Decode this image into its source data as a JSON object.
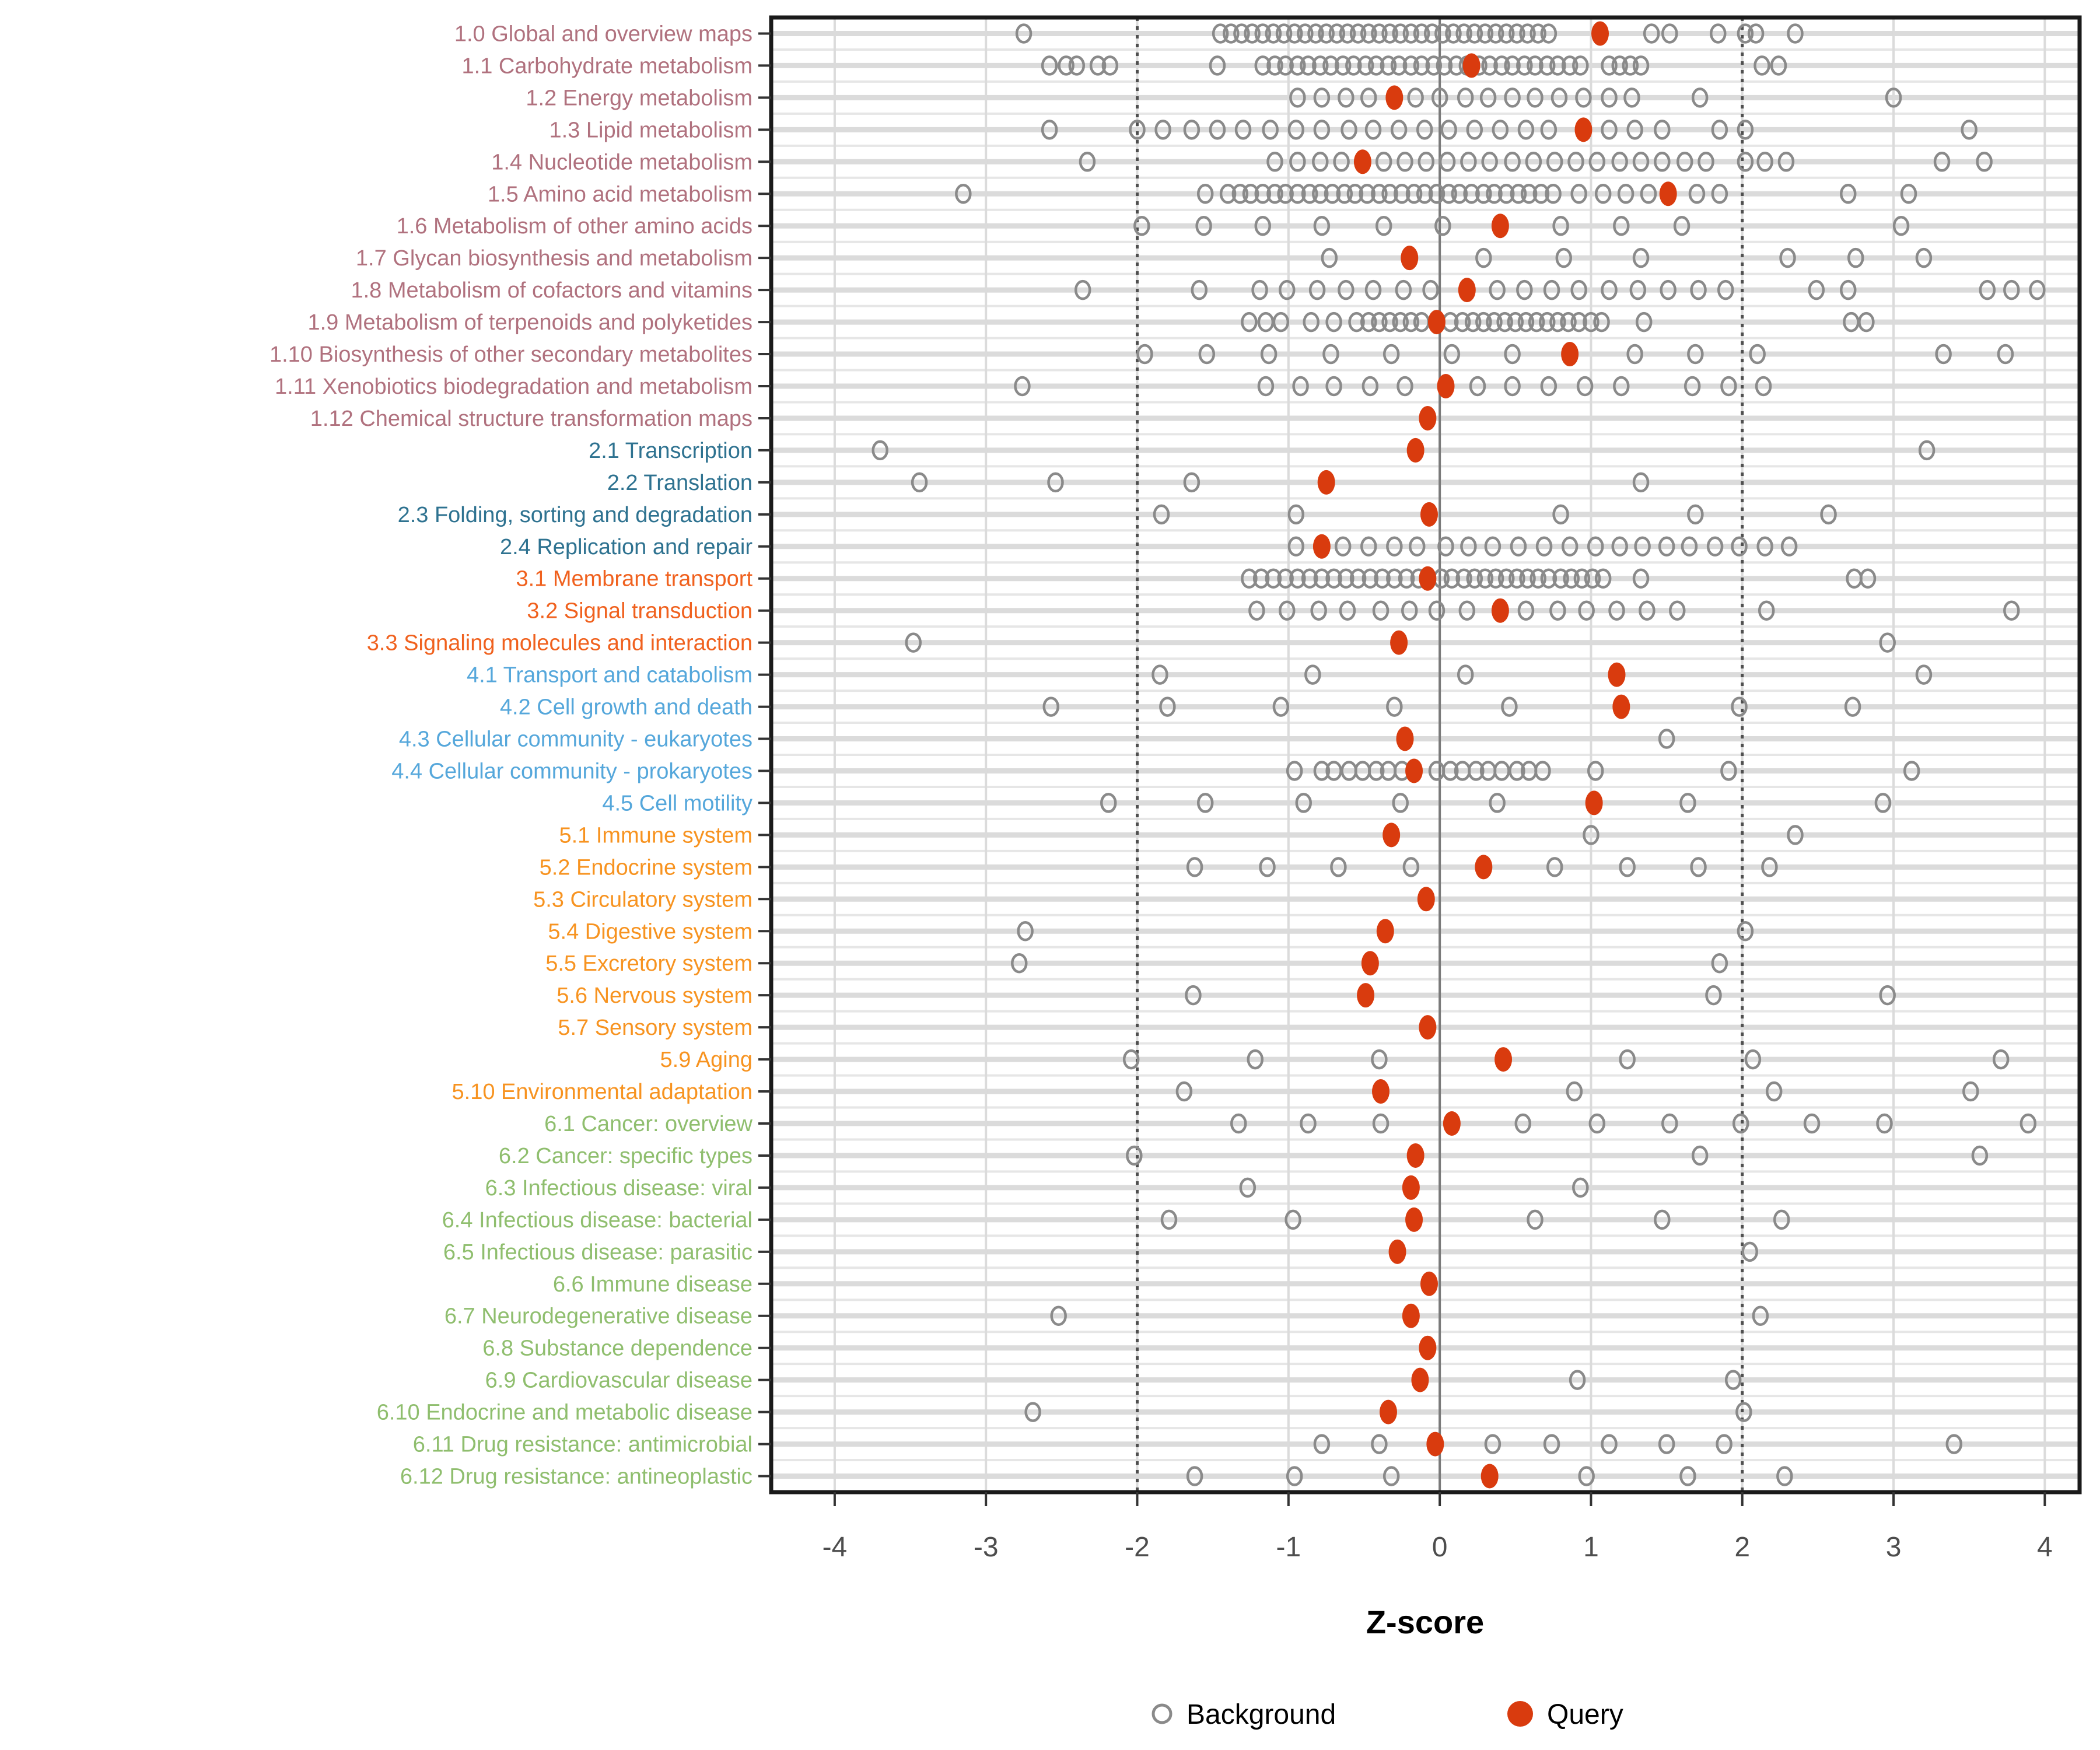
{
  "figure": {
    "kind": "horizontal strip plot of KEGG pathway category Z-scores",
    "background_color": "#ffffff"
  },
  "chart_data": {
    "type": "scatter",
    "title": "",
    "xlabel": "Z-score",
    "ylabel": "",
    "xlim": [
      -4.42,
      4.23
    ],
    "x_ticks": [
      -4,
      -3,
      -2,
      -1,
      0,
      1,
      2,
      3,
      4
    ],
    "grid": true,
    "reference_lines": {
      "solid_at": 0,
      "dotted_at": [
        -2,
        2
      ]
    },
    "legend": {
      "position": "bottom-center",
      "items": [
        {
          "label": "Background",
          "marker": "open-circle"
        },
        {
          "label": "Query",
          "marker": "filled-circle"
        }
      ]
    },
    "group_colors": {
      "1": "#B0717E",
      "2": "#2E7290",
      "3": "#F0611E",
      "4": "#55A7DB",
      "5": "#F79320",
      "6": "#8FBE6E"
    },
    "colors": {
      "query": "#D93B0E",
      "background_stroke": "#8A8A8A",
      "grid": "#DBDBDB",
      "grid_minor": "#E6E6E6",
      "zero_line": "#7A7A7A",
      "threshold_line": "#4F4F4F",
      "axis_text": "#4D4D4D",
      "axis_title": "#000000",
      "panel_border": "#1A1A1A"
    },
    "rows": [
      {
        "label": "1.0 Global and overview maps",
        "group": "1",
        "query": 1.06,
        "background": [
          -2.75,
          -1.45,
          -1.38,
          -1.31,
          -1.24,
          -1.17,
          -1.1,
          -1.03,
          -0.96,
          -0.89,
          -0.82,
          -0.75,
          -0.68,
          -0.61,
          -0.54,
          -0.47,
          -0.4,
          -0.33,
          -0.26,
          -0.19,
          -0.12,
          -0.05,
          0.02,
          0.09,
          0.16,
          0.23,
          0.3,
          0.37,
          0.44,
          0.51,
          0.58,
          0.65,
          0.72,
          1.4,
          1.52,
          1.84,
          2.02,
          2.09,
          2.35
        ]
      },
      {
        "label": "1.1 Carbohydrate metabolism",
        "group": "1",
        "query": 0.21,
        "background": [
          -2.58,
          -2.47,
          -2.4,
          -2.26,
          -2.18,
          -1.47,
          -1.17,
          -1.09,
          -1.02,
          -0.94,
          -0.87,
          -0.79,
          -0.72,
          -0.64,
          -0.57,
          -0.49,
          -0.42,
          -0.34,
          -0.27,
          -0.19,
          -0.12,
          -0.04,
          0.03,
          0.11,
          0.18,
          0.26,
          0.33,
          0.41,
          0.48,
          0.56,
          0.63,
          0.71,
          0.78,
          0.86,
          0.93,
          1.12,
          1.19,
          1.26,
          1.33,
          2.13,
          2.24
        ]
      },
      {
        "label": "1.2 Energy metabolism",
        "group": "1",
        "query": -0.3,
        "background": [
          -0.94,
          -0.78,
          -0.62,
          -0.47,
          -0.16,
          0.0,
          0.17,
          0.32,
          0.48,
          0.63,
          0.79,
          0.95,
          1.12,
          1.27,
          1.72,
          3.0
        ]
      },
      {
        "label": "1.3 Lipid metabolism",
        "group": "1",
        "query": 0.95,
        "background": [
          -2.58,
          -2.0,
          -1.83,
          -1.64,
          -1.47,
          -1.3,
          -1.12,
          -0.95,
          -0.78,
          -0.6,
          -0.44,
          -0.27,
          -0.1,
          0.06,
          0.23,
          0.4,
          0.57,
          0.72,
          1.12,
          1.29,
          1.47,
          1.85,
          2.02,
          3.5
        ]
      },
      {
        "label": "1.4 Nucleotide metabolism",
        "group": "1",
        "query": -0.51,
        "background": [
          -2.33,
          -1.09,
          -0.94,
          -0.79,
          -0.65,
          -0.37,
          -0.23,
          -0.09,
          0.05,
          0.19,
          0.33,
          0.48,
          0.62,
          0.76,
          0.9,
          1.04,
          1.19,
          1.33,
          1.47,
          1.62,
          1.76,
          2.02,
          2.15,
          2.29,
          3.32,
          3.6
        ]
      },
      {
        "label": "1.5 Amino acid metabolism",
        "group": "1",
        "query": 1.51,
        "background": [
          -3.15,
          -1.55,
          -1.4,
          -1.32,
          -1.25,
          -1.17,
          -1.09,
          -1.02,
          -0.94,
          -0.86,
          -0.79,
          -0.71,
          -0.63,
          -0.56,
          -0.48,
          -0.4,
          -0.33,
          -0.25,
          -0.17,
          -0.1,
          -0.02,
          0.06,
          0.13,
          0.21,
          0.29,
          0.36,
          0.44,
          0.52,
          0.59,
          0.67,
          0.75,
          0.92,
          1.08,
          1.23,
          1.38,
          1.7,
          1.85,
          2.7,
          3.1
        ]
      },
      {
        "label": "1.6 Metabolism of other amino acids",
        "group": "1",
        "query": 0.4,
        "background": [
          -1.97,
          -1.56,
          -1.17,
          -0.78,
          -0.37,
          0.02,
          0.8,
          1.2,
          1.6,
          3.05
        ]
      },
      {
        "label": "1.7 Glycan biosynthesis and metabolism",
        "group": "1",
        "query": -0.2,
        "background": [
          -0.73,
          0.29,
          0.82,
          1.33,
          2.3,
          2.75,
          3.2
        ]
      },
      {
        "label": "1.8 Metabolism of cofactors and vitamins",
        "group": "1",
        "query": 0.18,
        "background": [
          -2.36,
          -1.59,
          -1.19,
          -1.01,
          -0.81,
          -0.62,
          -0.44,
          -0.24,
          -0.06,
          0.38,
          0.56,
          0.74,
          0.92,
          1.12,
          1.31,
          1.51,
          1.71,
          1.89,
          2.49,
          2.7,
          3.62,
          3.78,
          3.95
        ]
      },
      {
        "label": "1.9 Metabolism of terpenoids and polyketides",
        "group": "1",
        "query": -0.02,
        "background": [
          -1.26,
          -1.15,
          -1.05,
          -0.85,
          -0.7,
          -0.55,
          -0.47,
          -0.4,
          -0.33,
          -0.26,
          -0.19,
          -0.12,
          0.07,
          0.15,
          0.22,
          0.29,
          0.36,
          0.43,
          0.5,
          0.57,
          0.64,
          0.71,
          0.78,
          0.85,
          0.92,
          1.0,
          1.07,
          1.35,
          2.72,
          2.82
        ]
      },
      {
        "label": "1.10 Biosynthesis of other secondary metabolites",
        "group": "1",
        "query": 0.86,
        "background": [
          -1.95,
          -1.54,
          -1.13,
          -0.72,
          -0.32,
          0.08,
          0.48,
          1.29,
          1.69,
          2.1,
          3.33,
          3.74
        ]
      },
      {
        "label": "1.11 Xenobiotics biodegradation and metabolism",
        "group": "1",
        "query": 0.04,
        "background": [
          -2.76,
          -1.15,
          -0.92,
          -0.7,
          -0.46,
          -0.23,
          0.25,
          0.48,
          0.72,
          0.96,
          1.2,
          1.67,
          1.91,
          2.14
        ]
      },
      {
        "label": "1.12 Chemical structure transformation maps",
        "group": "1",
        "query": -0.08,
        "background": []
      },
      {
        "label": "2.1 Transcription",
        "group": "2",
        "query": -0.16,
        "background": [
          -3.7,
          3.22
        ]
      },
      {
        "label": "2.2 Translation",
        "group": "2",
        "query": -0.75,
        "background": [
          -3.44,
          -2.54,
          -1.64,
          1.33
        ]
      },
      {
        "label": "2.3 Folding, sorting and degradation",
        "group": "2",
        "query": -0.07,
        "background": [
          -1.84,
          -0.95,
          0.8,
          1.69,
          2.57
        ]
      },
      {
        "label": "2.4 Replication and repair",
        "group": "2",
        "query": -0.78,
        "background": [
          -0.95,
          -0.64,
          -0.47,
          -0.3,
          -0.15,
          0.04,
          0.19,
          0.35,
          0.52,
          0.69,
          0.86,
          1.03,
          1.19,
          1.34,
          1.5,
          1.65,
          1.82,
          1.98,
          2.15,
          2.31
        ]
      },
      {
        "label": "3.1 Membrane transport",
        "group": "3",
        "query": -0.08,
        "background": [
          -1.26,
          -1.18,
          -1.1,
          -1.02,
          -0.94,
          -0.86,
          -0.78,
          -0.7,
          -0.62,
          -0.54,
          -0.46,
          -0.38,
          -0.3,
          -0.22,
          -0.14,
          0.01,
          0.08,
          0.16,
          0.23,
          0.3,
          0.37,
          0.44,
          0.51,
          0.58,
          0.65,
          0.72,
          0.8,
          0.87,
          0.94,
          1.01,
          1.08,
          1.33,
          2.74,
          2.83
        ]
      },
      {
        "label": "3.2 Signal transduction",
        "group": "3",
        "query": 0.4,
        "background": [
          -1.21,
          -1.01,
          -0.8,
          -0.61,
          -0.39,
          -0.2,
          -0.02,
          0.18,
          0.57,
          0.78,
          0.97,
          1.17,
          1.37,
          1.57,
          2.16,
          3.78
        ]
      },
      {
        "label": "3.3 Signaling molecules and interaction",
        "group": "3",
        "query": -0.27,
        "background": [
          -3.48,
          2.96
        ]
      },
      {
        "label": "4.1 Transport and catabolism",
        "group": "4",
        "query": 1.17,
        "background": [
          -1.85,
          -0.84,
          0.17,
          3.2
        ]
      },
      {
        "label": "4.2 Cell growth and death",
        "group": "4",
        "query": 1.2,
        "background": [
          -2.57,
          -1.8,
          -1.05,
          -0.3,
          0.46,
          1.98,
          2.73
        ]
      },
      {
        "label": "4.3 Cellular community - eukaryotes",
        "group": "4",
        "query": -0.23,
        "background": [
          1.5
        ]
      },
      {
        "label": "4.4 Cellular community - prokaryotes",
        "group": "4",
        "query": -0.17,
        "background": [
          -0.96,
          -0.78,
          -0.7,
          -0.6,
          -0.51,
          -0.42,
          -0.34,
          -0.25,
          -0.02,
          0.07,
          0.15,
          0.24,
          0.32,
          0.41,
          0.51,
          0.59,
          0.68,
          1.03,
          1.91,
          3.12
        ]
      },
      {
        "label": "4.5 Cell motility",
        "group": "4",
        "query": 1.02,
        "background": [
          -2.19,
          -1.55,
          -0.9,
          -0.26,
          0.38,
          1.64,
          2.93
        ]
      },
      {
        "label": "5.1 Immune system",
        "group": "5",
        "query": -0.32,
        "background": [
          1.0,
          2.35
        ]
      },
      {
        "label": "5.2 Endocrine system",
        "group": "5",
        "query": 0.29,
        "background": [
          -1.62,
          -1.14,
          -0.67,
          -0.19,
          0.76,
          1.24,
          1.71,
          2.18
        ]
      },
      {
        "label": "5.3 Circulatory system",
        "group": "5",
        "query": -0.09,
        "background": []
      },
      {
        "label": "5.4 Digestive system",
        "group": "5",
        "query": -0.36,
        "background": [
          -2.74,
          2.02
        ]
      },
      {
        "label": "5.5 Excretory system",
        "group": "5",
        "query": -0.46,
        "background": [
          -2.78,
          1.85
        ]
      },
      {
        "label": "5.6 Nervous system",
        "group": "5",
        "query": -0.49,
        "background": [
          -1.63,
          1.81,
          2.96
        ]
      },
      {
        "label": "5.7 Sensory system",
        "group": "5",
        "query": -0.08,
        "background": []
      },
      {
        "label": "5.9 Aging",
        "group": "5",
        "query": 0.42,
        "background": [
          -2.04,
          -1.22,
          -0.4,
          1.24,
          2.07,
          3.71
        ]
      },
      {
        "label": "5.10 Environmental adaptation",
        "group": "5",
        "query": -0.39,
        "background": [
          -1.69,
          0.89,
          2.21,
          3.51
        ]
      },
      {
        "label": "6.1 Cancer: overview",
        "group": "6",
        "query": 0.08,
        "background": [
          -1.33,
          -0.87,
          -0.39,
          0.55,
          1.04,
          1.52,
          1.99,
          2.46,
          2.94,
          3.89
        ]
      },
      {
        "label": "6.2 Cancer: specific types",
        "group": "6",
        "query": -0.16,
        "background": [
          -2.02,
          1.72,
          3.57
        ]
      },
      {
        "label": "6.3 Infectious disease: viral",
        "group": "6",
        "query": -0.19,
        "background": [
          -1.27,
          0.93
        ]
      },
      {
        "label": "6.4 Infectious disease: bacterial",
        "group": "6",
        "query": -0.17,
        "background": [
          -1.79,
          -0.97,
          0.63,
          1.47,
          2.26
        ]
      },
      {
        "label": "6.5 Infectious disease: parasitic",
        "group": "6",
        "query": -0.28,
        "background": [
          2.05
        ]
      },
      {
        "label": "6.6 Immune disease",
        "group": "6",
        "query": -0.07,
        "background": []
      },
      {
        "label": "6.7 Neurodegenerative disease",
        "group": "6",
        "query": -0.19,
        "background": [
          -2.52,
          2.12
        ]
      },
      {
        "label": "6.8 Substance dependence",
        "group": "6",
        "query": -0.08,
        "background": []
      },
      {
        "label": "6.9 Cardiovascular disease",
        "group": "6",
        "query": -0.13,
        "background": [
          0.91,
          1.94
        ]
      },
      {
        "label": "6.10 Endocrine and metabolic disease",
        "group": "6",
        "query": -0.34,
        "background": [
          -2.69,
          2.01
        ]
      },
      {
        "label": "6.11 Drug resistance: antimicrobial",
        "group": "6",
        "query": -0.03,
        "background": [
          -0.78,
          -0.4,
          0.35,
          0.74,
          1.12,
          1.5,
          1.88,
          3.4
        ]
      },
      {
        "label": "6.12 Drug resistance: antineoplastic",
        "group": "6",
        "query": 0.33,
        "background": [
          -1.62,
          -0.96,
          -0.32,
          0.97,
          1.64,
          2.28
        ]
      }
    ]
  }
}
